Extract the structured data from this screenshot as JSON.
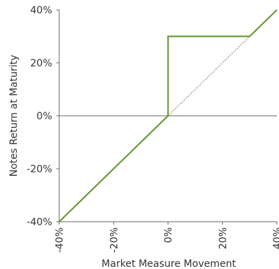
{
  "chart_data": {
    "type": "line",
    "title": "",
    "xlabel": "Market Measure Movement",
    "ylabel": "Notes Return at Maturity",
    "xlim": [
      -40,
      40
    ],
    "ylim": [
      -40,
      40
    ],
    "x_ticks": [
      -40,
      -20,
      0,
      20,
      40
    ],
    "x_tick_labels": [
      "-40%",
      "-20%",
      "0%",
      "20%",
      "40%"
    ],
    "y_ticks": [
      -40,
      -20,
      0,
      20,
      40
    ],
    "y_tick_labels": [
      "-40%",
      "-20%",
      "0%",
      "20%",
      "40%"
    ],
    "grid": false,
    "zero_line": true,
    "series": [
      {
        "style": "solid",
        "color": "#6a9a3a",
        "x": [
          -40,
          0,
          0,
          30,
          40
        ],
        "y": [
          -40,
          0,
          30,
          30,
          40
        ]
      },
      {
        "style": "dotted",
        "color": "#555555",
        "x": [
          0,
          30
        ],
        "y": [
          0,
          30
        ]
      }
    ]
  }
}
